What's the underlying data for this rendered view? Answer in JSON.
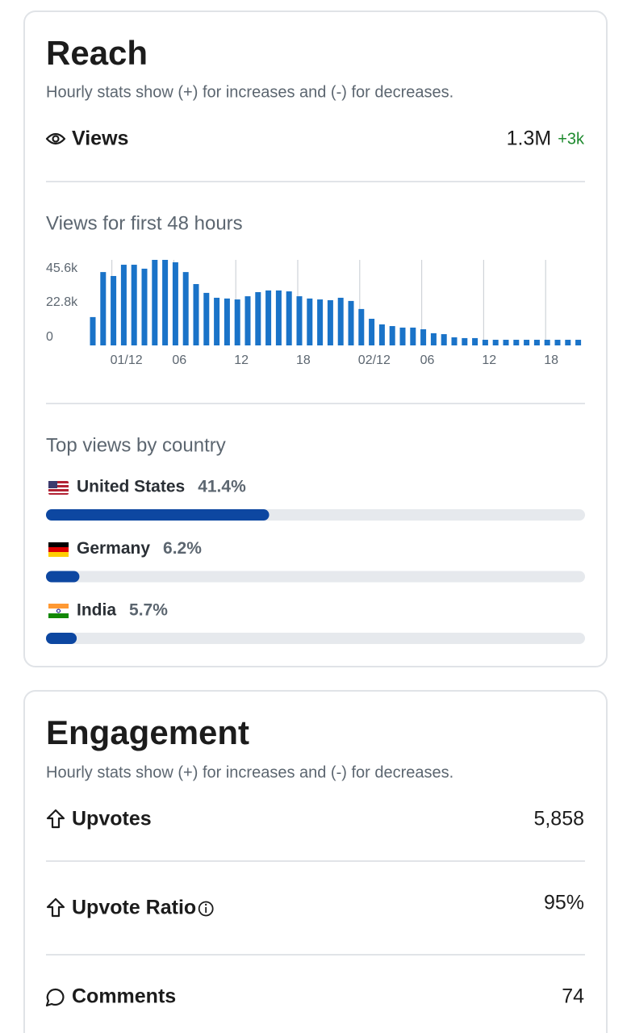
{
  "reach": {
    "title": "Reach",
    "subtitle": "Hourly stats show (+) for increases and (-) for decreases.",
    "metric": {
      "label": "Views",
      "value": "1.3M",
      "delta": "+3k"
    }
  },
  "chart_data": [
    {
      "type": "bar",
      "title": "Views for first 48 hours",
      "color": "#1a73c8",
      "grid": true,
      "categories": [
        null,
        null,
        "01/12",
        null,
        null,
        null,
        null,
        null,
        "06",
        null,
        null,
        null,
        null,
        null,
        "12",
        null,
        null,
        null,
        null,
        null,
        "18",
        null,
        null,
        null,
        null,
        null,
        "02/12",
        null,
        null,
        null,
        null,
        null,
        "06",
        null,
        null,
        null,
        null,
        null,
        "12",
        null,
        null,
        null,
        null,
        null,
        "18",
        null,
        null,
        null
      ],
      "values": [
        15100,
        39100,
        37000,
        43000,
        43000,
        40900,
        45600,
        45600,
        44300,
        39100,
        32700,
        28000,
        25400,
        25000,
        24500,
        26200,
        28400,
        29300,
        29300,
        28800,
        26200,
        25000,
        24500,
        24100,
        25400,
        23700,
        19400,
        14200,
        11200,
        10300,
        9500,
        9500,
        8600,
        6500,
        6000,
        4300,
        3900,
        3900,
        3000,
        3000,
        3000,
        3000,
        3000,
        3000,
        3000,
        3000,
        3000,
        3000
      ],
      "ylim": [
        0,
        45600
      ],
      "yticks": [
        {
          "value": 45600,
          "label": "45.6k"
        },
        {
          "value": 22800,
          "label": "22.8k"
        },
        0
      ]
    },
    {
      "type": "hbar",
      "title": "Top views by country",
      "color": "#0d47a1",
      "categories": [
        "United States",
        "Germany",
        "India"
      ],
      "values": [
        41.4,
        6.2,
        5.7
      ],
      "value_labels": [
        "41.4%",
        "6.2%",
        "5.7%"
      ],
      "xlim": [
        0,
        100
      ]
    }
  ],
  "engagement": {
    "title": "Engagement",
    "subtitle": "Hourly stats show (+) for increases and (-) for decreases.",
    "metrics": [
      {
        "label": "Upvotes",
        "value": "5,858"
      },
      {
        "label": "Upvote Ratio",
        "value": "95%"
      },
      {
        "label": "Comments",
        "value": "74"
      }
    ]
  }
}
